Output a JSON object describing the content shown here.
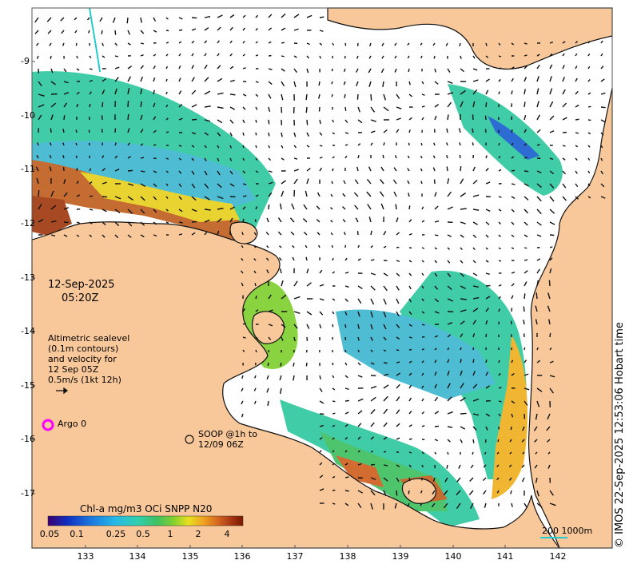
{
  "colors": {
    "land": "#f9c89a",
    "sea": "#ffffff",
    "coast": "#111111",
    "argo": "#ff00ff",
    "contour": "#22cccc",
    "legend_line": "#22cccc",
    "colorbar": [
      "#3b0070",
      "#1030c0",
      "#1c78e0",
      "#25b8e8",
      "#30d0b0",
      "#40c060",
      "#7fd030",
      "#e8e020",
      "#f0a020",
      "#d06020",
      "#a03010",
      "#7a1a00"
    ]
  },
  "map": {
    "date": "12-Sep-2025",
    "time": "05:20Z",
    "legend_lines": [
      "Altimetric sealevel",
      "(0.1m contours)",
      "and velocity for",
      "12 Sep 05Z",
      "0.5m/s (1kt 12h)"
    ],
    "argo_label": "Argo 0",
    "soop_label_1": "SOOP @1h to",
    "soop_label_2": "12/09 06Z",
    "colorbar_title": "Chl-a mg/m3 OCi SNPP N20",
    "colorbar_ticks": [
      "0.05",
      "0.1",
      "0.25",
      "0.5",
      "1",
      "2",
      "4"
    ],
    "depth_legend": "200  1000m",
    "credit": "© IMOS 22-Sep-2025 12:53:06 Hobart time",
    "y_ticks": [
      "-9",
      "-10",
      "-11",
      "-12",
      "-13",
      "-14",
      "-15",
      "-16",
      "-17"
    ],
    "x_ticks": [
      "133",
      "134",
      "135",
      "136",
      "137",
      "138",
      "139",
      "140",
      "141",
      "142"
    ]
  }
}
